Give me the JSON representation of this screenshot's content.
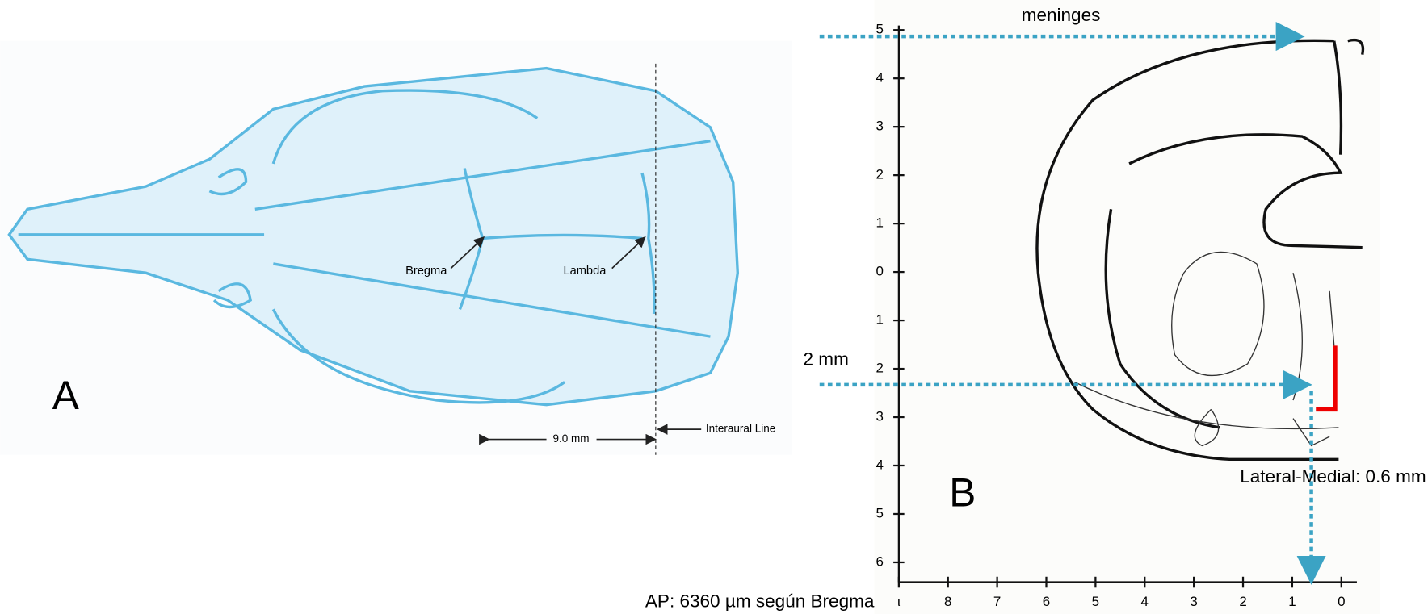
{
  "panel_a": {
    "letter": "A",
    "bregma": "Bregma",
    "lambda": "Lambda",
    "distance": "9.0 mm",
    "interaural": "Interaural Line"
  },
  "panel_b": {
    "letter": "B",
    "meninges": "meninges",
    "depth": "2 mm",
    "lateral_medial": "Lateral-Medial: 0.6 mm",
    "ap": "AP: 6360 µm según Bregma",
    "y_axis_labels": [
      "5",
      "4",
      "3",
      "2",
      "1",
      "0",
      "1",
      "2",
      "3",
      "4",
      "5",
      "6"
    ],
    "x_axis_labels": [
      "ι",
      "8",
      "7",
      "6",
      "5",
      "4",
      "3",
      "2",
      "1",
      "0"
    ]
  }
}
